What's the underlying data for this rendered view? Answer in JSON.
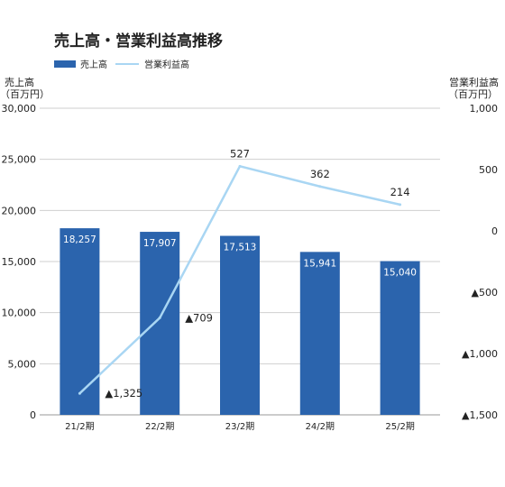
{
  "colors": {
    "bar": "#2b64ad",
    "line": "#a9d6f3",
    "grid": "#cfcfcf",
    "text": "#222222"
  },
  "chart_data": {
    "type": "bar",
    "title": "売上高・営業利益高推移",
    "categories": [
      "21/2期",
      "22/2期",
      "23/2期",
      "24/2期",
      "25/2期"
    ],
    "series": [
      {
        "name": "売上高",
        "type": "bar",
        "axis": "left",
        "values": [
          18257,
          17907,
          17513,
          15941,
          15040
        ],
        "labels": [
          "18,257",
          "17,907",
          "17,513",
          "15,941",
          "15,040"
        ]
      },
      {
        "name": "営業利益高",
        "type": "line",
        "axis": "right",
        "values": [
          -1325,
          -709,
          527,
          362,
          214
        ],
        "labels": [
          "▲1,325",
          "▲709",
          "527",
          "362",
          "214"
        ]
      }
    ],
    "y_left": {
      "label_line1": "売上高",
      "label_line2": "（百万円）",
      "lim": [
        0,
        30000
      ],
      "ticks": [
        0,
        5000,
        10000,
        15000,
        20000,
        25000,
        30000
      ],
      "tick_labels": [
        "0",
        "5,000",
        "10,000",
        "15,000",
        "20,000",
        "25,000",
        "30,000"
      ]
    },
    "y_right": {
      "label_line1": "営業利益高",
      "label_line2": "（百万円）",
      "lim": [
        -1500,
        1000
      ],
      "ticks": [
        1000,
        500,
        0,
        -500,
        -1000,
        -1500
      ],
      "tick_labels": [
        "1,000",
        "500",
        "0",
        "▲500",
        "▲1,000",
        "▲1,500"
      ]
    },
    "legend": {
      "position": "top-left"
    },
    "grid": true
  }
}
